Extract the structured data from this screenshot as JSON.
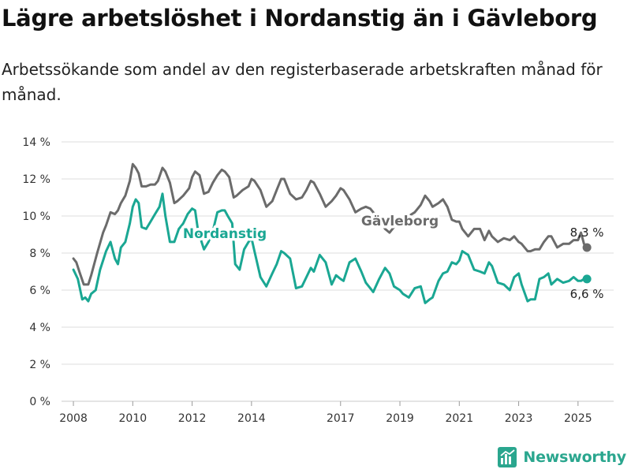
{
  "header": {
    "title": "Lägre arbetslöshet i Nordanstig än i Gävleborg",
    "subtitle": "Arbetssökande som andel av den registerbaserade arbetskraften månad för månad."
  },
  "branding": {
    "name": "Newsworthy",
    "icon": "bar-chart-icon"
  },
  "chart_data": {
    "type": "line",
    "xlabel": "",
    "ylabel": "",
    "xlim": [
      2007.6,
      2026.2
    ],
    "ylim": [
      0,
      14
    ],
    "grid": "horizontal",
    "legend": "inline",
    "x_ticks": [
      {
        "value": 2008,
        "label": "2008"
      },
      {
        "value": 2010,
        "label": "2010"
      },
      {
        "value": 2012,
        "label": "2012"
      },
      {
        "value": 2014,
        "label": "2014"
      },
      {
        "value": 2017,
        "label": "2017"
      },
      {
        "value": 2019,
        "label": "2019"
      },
      {
        "value": 2021,
        "label": "2021"
      },
      {
        "value": 2023,
        "label": "2023"
      },
      {
        "value": 2025,
        "label": "2025"
      }
    ],
    "y_ticks": [
      {
        "value": 0,
        "label": "0 %"
      },
      {
        "value": 2,
        "label": "2 %"
      },
      {
        "value": 4,
        "label": "4 %"
      },
      {
        "value": 6,
        "label": "6 %"
      },
      {
        "value": 8,
        "label": "8 %"
      },
      {
        "value": 10,
        "label": "10 %"
      },
      {
        "value": 12,
        "label": "12 %"
      },
      {
        "value": 14,
        "label": "14 %"
      }
    ],
    "series": [
      {
        "name": "Gävleborg",
        "color": "#6b6b6b",
        "end_label": "8,3 %",
        "x": [
          2008.0,
          2008.1,
          2008.2,
          2008.35,
          2008.5,
          2008.6,
          2008.8,
          2009.0,
          2009.1,
          2009.25,
          2009.4,
          2009.5,
          2009.6,
          2009.75,
          2009.9,
          2010.0,
          2010.1,
          2010.2,
          2010.3,
          2010.45,
          2010.6,
          2010.75,
          2010.85,
          2011.0,
          2011.1,
          2011.25,
          2011.4,
          2011.5,
          2011.7,
          2011.9,
          2012.0,
          2012.1,
          2012.25,
          2012.4,
          2012.55,
          2012.7,
          2012.85,
          2013.0,
          2013.1,
          2013.25,
          2013.4,
          2013.5,
          2013.7,
          2013.9,
          2014.0,
          2014.1,
          2014.3,
          2014.5,
          2014.7,
          2014.85,
          2015.0,
          2015.1,
          2015.3,
          2015.5,
          2015.7,
          2015.85,
          2016.0,
          2016.1,
          2016.3,
          2016.5,
          2016.7,
          2016.85,
          2017.0,
          2017.1,
          2017.3,
          2017.5,
          2017.7,
          2017.85,
          2018.0,
          2018.1,
          2018.3,
          2018.5,
          2018.65,
          2018.8,
          2019.0,
          2019.1,
          2019.3,
          2019.5,
          2019.7,
          2019.85,
          2020.0,
          2020.1,
          2020.3,
          2020.45,
          2020.6,
          2020.75,
          2020.9,
          2021.0,
          2021.1,
          2021.3,
          2021.5,
          2021.7,
          2021.85,
          2022.0,
          2022.1,
          2022.3,
          2022.5,
          2022.7,
          2022.85,
          2023.0,
          2023.1,
          2023.3,
          2023.4,
          2023.55,
          2023.7,
          2023.85,
          2024.0,
          2024.1,
          2024.3,
          2024.5,
          2024.7,
          2024.85,
          2025.0,
          2025.1,
          2025.2,
          2025.3
        ],
        "values": [
          7.7,
          7.5,
          7.0,
          6.3,
          6.3,
          6.8,
          8.0,
          9.1,
          9.5,
          10.2,
          10.1,
          10.3,
          10.7,
          11.1,
          11.9,
          12.8,
          12.6,
          12.3,
          11.6,
          11.6,
          11.7,
          11.7,
          11.9,
          12.6,
          12.4,
          11.8,
          10.7,
          10.8,
          11.1,
          11.5,
          12.1,
          12.4,
          12.2,
          11.2,
          11.3,
          11.8,
          12.2,
          12.5,
          12.4,
          12.1,
          11.0,
          11.1,
          11.4,
          11.6,
          12.0,
          11.9,
          11.4,
          10.5,
          10.8,
          11.4,
          12.0,
          12.0,
          11.2,
          10.9,
          11.0,
          11.4,
          11.9,
          11.8,
          11.2,
          10.5,
          10.8,
          11.1,
          11.5,
          11.4,
          10.9,
          10.2,
          10.4,
          10.5,
          10.4,
          10.2,
          9.9,
          9.3,
          9.1,
          9.4,
          9.8,
          9.5,
          10.0,
          10.2,
          10.6,
          11.1,
          10.8,
          10.5,
          10.7,
          10.9,
          10.5,
          9.8,
          9.7,
          9.7,
          9.3,
          8.9,
          9.3,
          9.3,
          8.7,
          9.2,
          8.9,
          8.6,
          8.8,
          8.7,
          8.9,
          8.6,
          8.5,
          8.1,
          8.1,
          8.2,
          8.2,
          8.6,
          8.9,
          8.9,
          8.3,
          8.5,
          8.5,
          8.7,
          8.7,
          9.1,
          8.5,
          8.3
        ]
      },
      {
        "name": "Nordanstig",
        "color": "#1aa793",
        "end_label": "6,6 %",
        "x": [
          2008.0,
          2008.15,
          2008.3,
          2008.4,
          2008.5,
          2008.6,
          2008.75,
          2008.9,
          2009.0,
          2009.1,
          2009.25,
          2009.4,
          2009.5,
          2009.6,
          2009.75,
          2009.9,
          2010.0,
          2010.1,
          2010.2,
          2010.3,
          2010.45,
          2010.6,
          2010.75,
          2010.9,
          2011.0,
          2011.1,
          2011.25,
          2011.4,
          2011.55,
          2011.7,
          2011.85,
          2012.0,
          2012.1,
          2012.2,
          2012.4,
          2012.55,
          2012.7,
          2012.85,
          2013.0,
          2013.1,
          2013.2,
          2013.35,
          2013.45,
          2013.6,
          2013.75,
          2013.9,
          2014.0,
          2014.1,
          2014.3,
          2014.5,
          2014.7,
          2014.85,
          2015.0,
          2015.1,
          2015.3,
          2015.5,
          2015.7,
          2015.85,
          2016.0,
          2016.1,
          2016.3,
          2016.5,
          2016.7,
          2016.85,
          2017.0,
          2017.1,
          2017.3,
          2017.5,
          2017.7,
          2017.85,
          2018.0,
          2018.1,
          2018.3,
          2018.5,
          2018.65,
          2018.8,
          2019.0,
          2019.1,
          2019.3,
          2019.5,
          2019.7,
          2019.85,
          2020.0,
          2020.1,
          2020.3,
          2020.45,
          2020.6,
          2020.75,
          2020.9,
          2021.0,
          2021.1,
          2021.3,
          2021.5,
          2021.7,
          2021.85,
          2022.0,
          2022.1,
          2022.3,
          2022.5,
          2022.7,
          2022.85,
          2023.0,
          2023.1,
          2023.3,
          2023.4,
          2023.55,
          2023.7,
          2023.85,
          2024.0,
          2024.1,
          2024.3,
          2024.5,
          2024.7,
          2024.85,
          2025.0,
          2025.1,
          2025.2,
          2025.3
        ],
        "values": [
          7.1,
          6.6,
          5.5,
          5.6,
          5.4,
          5.8,
          6.0,
          7.1,
          7.6,
          8.1,
          8.6,
          7.7,
          7.4,
          8.3,
          8.6,
          9.6,
          10.5,
          10.9,
          10.7,
          9.4,
          9.3,
          9.7,
          10.1,
          10.5,
          11.2,
          10.0,
          8.6,
          8.6,
          9.3,
          9.6,
          10.1,
          10.4,
          10.3,
          9.2,
          8.2,
          8.6,
          9.2,
          10.2,
          10.3,
          10.3,
          10.0,
          9.6,
          7.4,
          7.1,
          8.2,
          8.6,
          8.8,
          8.1,
          6.7,
          6.2,
          6.9,
          7.4,
          8.1,
          8.0,
          7.7,
          6.1,
          6.2,
          6.7,
          7.2,
          7.0,
          7.9,
          7.5,
          6.3,
          6.8,
          6.6,
          6.5,
          7.5,
          7.7,
          7.0,
          6.4,
          6.1,
          5.9,
          6.6,
          7.2,
          6.9,
          6.2,
          6.0,
          5.8,
          5.6,
          6.1,
          6.2,
          5.3,
          5.5,
          5.6,
          6.5,
          6.9,
          7.0,
          7.5,
          7.4,
          7.6,
          8.1,
          7.9,
          7.1,
          7.0,
          6.9,
          7.5,
          7.3,
          6.4,
          6.3,
          6.0,
          6.7,
          6.9,
          6.3,
          5.4,
          5.5,
          5.5,
          6.6,
          6.7,
          6.9,
          6.3,
          6.6,
          6.4,
          6.5,
          6.7,
          6.5,
          6.5,
          6.6,
          6.6
        ]
      }
    ]
  }
}
